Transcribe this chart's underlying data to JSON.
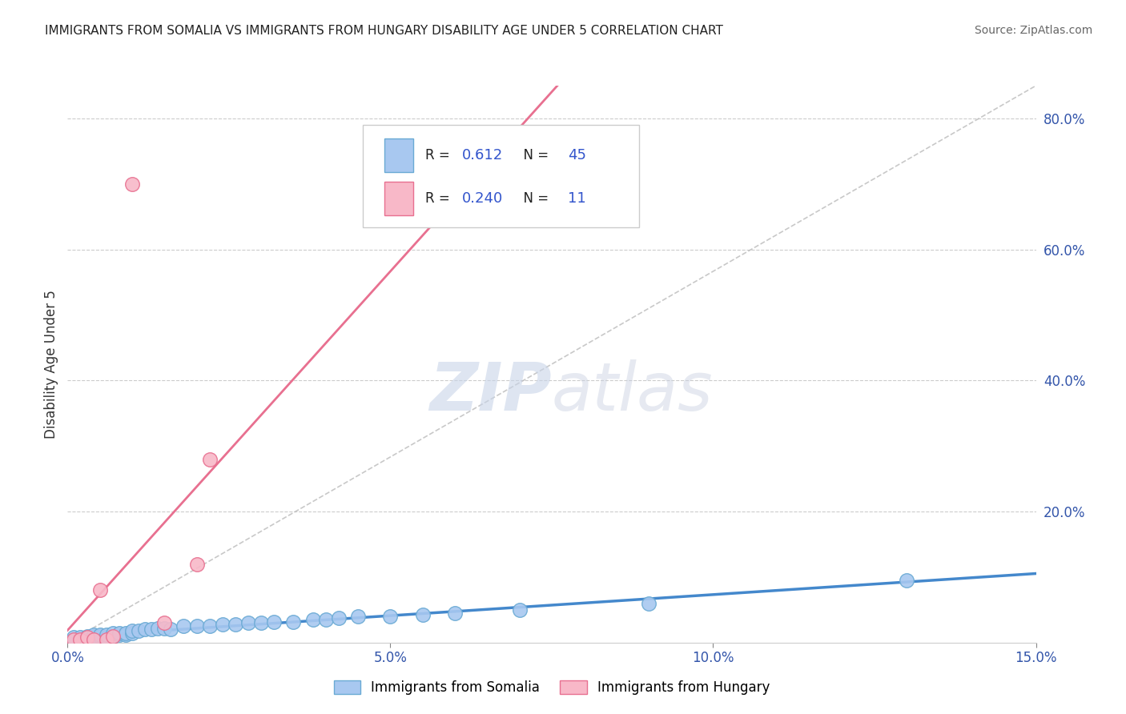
{
  "title": "IMMIGRANTS FROM SOMALIA VS IMMIGRANTS FROM HUNGARY DISABILITY AGE UNDER 5 CORRELATION CHART",
  "source": "Source: ZipAtlas.com",
  "ylabel": "Disability Age Under 5",
  "xlim": [
    0.0,
    0.15
  ],
  "ylim": [
    0.0,
    0.85
  ],
  "xticks": [
    0.0,
    0.05,
    0.1,
    0.15
  ],
  "xticklabels": [
    "0.0%",
    "5.0%",
    "10.0%",
    "15.0%"
  ],
  "yticks_right": [
    0.0,
    0.2,
    0.4,
    0.6,
    0.8
  ],
  "ytick_right_labels": [
    "",
    "20.0%",
    "40.0%",
    "60.0%",
    "80.0%"
  ],
  "somalia_color": "#a8c8f0",
  "somalia_edge": "#6aaad4",
  "hungary_color": "#f8b8c8",
  "hungary_edge": "#e87090",
  "somalia_R": 0.612,
  "somalia_N": 45,
  "hungary_R": 0.24,
  "hungary_N": 11,
  "somalia_line_color": "#4488cc",
  "hungary_line_color": "#e87090",
  "watermark_color": "#d0d8e8",
  "legend_label1": "Immigrants from Somalia",
  "legend_label2": "Immigrants from Hungary",
  "somalia_x": [
    0.001,
    0.001,
    0.002,
    0.002,
    0.003,
    0.003,
    0.004,
    0.004,
    0.005,
    0.005,
    0.006,
    0.006,
    0.007,
    0.007,
    0.008,
    0.008,
    0.009,
    0.009,
    0.01,
    0.01,
    0.011,
    0.012,
    0.013,
    0.014,
    0.015,
    0.016,
    0.018,
    0.02,
    0.022,
    0.024,
    0.026,
    0.028,
    0.03,
    0.032,
    0.035,
    0.038,
    0.04,
    0.042,
    0.045,
    0.05,
    0.055,
    0.06,
    0.07,
    0.09,
    0.13
  ],
  "somalia_y": [
    0.005,
    0.008,
    0.005,
    0.008,
    0.008,
    0.01,
    0.01,
    0.012,
    0.01,
    0.012,
    0.008,
    0.012,
    0.01,
    0.015,
    0.012,
    0.015,
    0.012,
    0.015,
    0.015,
    0.018,
    0.018,
    0.02,
    0.02,
    0.022,
    0.022,
    0.02,
    0.025,
    0.025,
    0.025,
    0.028,
    0.028,
    0.03,
    0.03,
    0.032,
    0.032,
    0.035,
    0.035,
    0.038,
    0.04,
    0.04,
    0.042,
    0.045,
    0.05,
    0.06,
    0.095
  ],
  "hungary_x": [
    0.001,
    0.002,
    0.003,
    0.004,
    0.005,
    0.006,
    0.007,
    0.01,
    0.015,
    0.02,
    0.022
  ],
  "hungary_y": [
    0.005,
    0.005,
    0.008,
    0.005,
    0.08,
    0.005,
    0.01,
    0.7,
    0.03,
    0.12,
    0.28
  ]
}
